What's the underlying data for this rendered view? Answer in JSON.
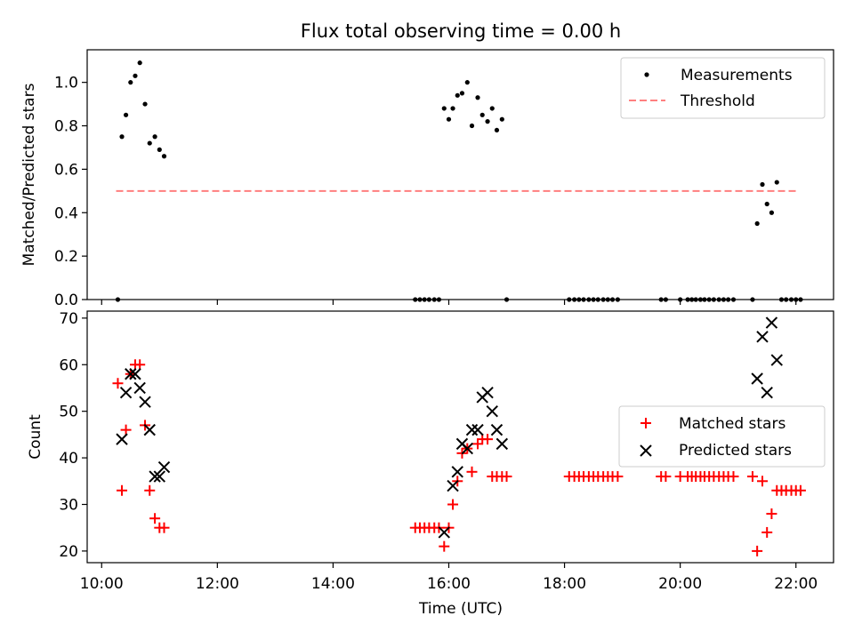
{
  "colors": {
    "measurements": "#000000",
    "threshold": "#ff7f7f",
    "matched": "#ff0000",
    "predicted": "#000000"
  },
  "chart_data": [
    {
      "type": "scatter",
      "title": "Flux total observing time = 0.00 h",
      "xlabel": "",
      "ylabel": "Matched/Predicted stars",
      "xlim": [
        9.75,
        22.65
      ],
      "ylim": [
        0,
        1.15
      ],
      "yticks": [
        0.0,
        0.2,
        0.4,
        0.6,
        0.8,
        1.0
      ],
      "ytick_labels": [
        "0.0",
        "0.2",
        "0.4",
        "0.6",
        "0.8",
        "1.0"
      ],
      "xticks": [
        10,
        12,
        14,
        16,
        18,
        20,
        22
      ],
      "grid": false,
      "legend": "upper right",
      "series": [
        {
          "name": "Measurements",
          "marker": "dot",
          "x": [
            10.28,
            10.35,
            10.42,
            10.5,
            10.58,
            10.66,
            10.75,
            10.83,
            10.92,
            11.0,
            11.08,
            15.42,
            15.5,
            15.58,
            15.66,
            15.75,
            15.83,
            15.92,
            16.0,
            16.07,
            16.15,
            16.23,
            16.32,
            16.4,
            16.5,
            16.58,
            16.67,
            16.75,
            16.83,
            16.92,
            17.0,
            18.08,
            18.17,
            18.25,
            18.33,
            18.42,
            18.5,
            18.58,
            18.67,
            18.75,
            18.83,
            18.92,
            19.67,
            19.75,
            20.0,
            20.13,
            20.2,
            20.27,
            20.35,
            20.42,
            20.5,
            20.58,
            20.67,
            20.75,
            20.83,
            20.92,
            21.25,
            21.33,
            21.42,
            21.5,
            21.58,
            21.67,
            21.75,
            21.83,
            21.92,
            22.0,
            22.08
          ],
          "y": [
            0.0,
            0.75,
            0.85,
            1.0,
            1.03,
            1.09,
            0.9,
            0.72,
            0.75,
            0.69,
            0.66,
            0.0,
            0.0,
            0.0,
            0.0,
            0.0,
            0.0,
            0.88,
            0.83,
            0.88,
            0.94,
            0.95,
            1.0,
            0.8,
            0.93,
            0.85,
            0.82,
            0.88,
            0.78,
            0.83,
            0.0,
            0.0,
            0.0,
            0.0,
            0.0,
            0.0,
            0.0,
            0.0,
            0.0,
            0.0,
            0.0,
            0.0,
            0.0,
            0.0,
            0.0,
            0.0,
            0.0,
            0.0,
            0.0,
            0.0,
            0.0,
            0.0,
            0.0,
            0.0,
            0.0,
            0.0,
            0.0,
            0.35,
            0.53,
            0.44,
            0.4,
            0.54,
            0.0,
            0.0,
            0.0,
            0.0,
            0.0
          ]
        },
        {
          "name": "Threshold",
          "style": "dashed",
          "x": [
            10.25,
            22.05
          ],
          "y": [
            0.5,
            0.5
          ]
        }
      ]
    },
    {
      "type": "scatter",
      "title": "",
      "xlabel": "Time (UTC)",
      "ylabel": "Count",
      "xlim": [
        9.75,
        22.65
      ],
      "ylim": [
        17.5,
        71.5
      ],
      "yticks": [
        20,
        30,
        40,
        50,
        60,
        70
      ],
      "xticks": [
        10,
        12,
        14,
        16,
        18,
        20,
        22
      ],
      "xtick_labels": [
        "10:00",
        "12:00",
        "14:00",
        "16:00",
        "18:00",
        "20:00",
        "22:00"
      ],
      "grid": false,
      "legend": "center right",
      "series": [
        {
          "name": "Matched stars",
          "marker": "plus",
          "x": [
            10.28,
            10.35,
            10.42,
            10.5,
            10.58,
            10.66,
            10.75,
            10.83,
            10.92,
            11.0,
            11.08,
            15.42,
            15.5,
            15.58,
            15.66,
            15.75,
            15.83,
            15.92,
            16.0,
            16.07,
            16.15,
            16.23,
            16.32,
            16.4,
            16.5,
            16.58,
            16.67,
            16.75,
            16.83,
            16.92,
            17.0,
            18.08,
            18.17,
            18.25,
            18.33,
            18.42,
            18.5,
            18.58,
            18.67,
            18.75,
            18.83,
            18.92,
            19.67,
            19.75,
            20.0,
            20.13,
            20.2,
            20.27,
            20.35,
            20.42,
            20.5,
            20.58,
            20.67,
            20.75,
            20.83,
            20.92,
            21.25,
            21.33,
            21.42,
            21.5,
            21.58,
            21.67,
            21.75,
            21.83,
            21.92,
            22.0,
            22.08
          ],
          "y": [
            56,
            33,
            46,
            58,
            60,
            60,
            47,
            33,
            27,
            25,
            25,
            25,
            25,
            25,
            25,
            25,
            25,
            21,
            25,
            30,
            35,
            41,
            42,
            37,
            43,
            44,
            44,
            36,
            36,
            36,
            36,
            36,
            36,
            36,
            36,
            36,
            36,
            36,
            36,
            36,
            36,
            36,
            36,
            36,
            36,
            36,
            36,
            36,
            36,
            36,
            36,
            36,
            36,
            36,
            36,
            36,
            36,
            20,
            35,
            24,
            28,
            33,
            33,
            33,
            33,
            33,
            33
          ]
        },
        {
          "name": "Predicted stars",
          "marker": "x",
          "x": [
            10.35,
            10.42,
            10.5,
            10.58,
            10.66,
            10.75,
            10.83,
            10.92,
            11.0,
            11.08,
            15.92,
            16.07,
            16.15,
            16.23,
            16.32,
            16.4,
            16.5,
            16.58,
            16.67,
            16.75,
            16.83,
            16.92,
            21.33,
            21.42,
            21.5,
            21.58,
            21.67
          ],
          "y": [
            44,
            54,
            58,
            58,
            55,
            52,
            46,
            36,
            36,
            38,
            24,
            34,
            37,
            43,
            42,
            46,
            46,
            53,
            54,
            50,
            46,
            43,
            57,
            66,
            54,
            69,
            61
          ]
        }
      ]
    }
  ]
}
